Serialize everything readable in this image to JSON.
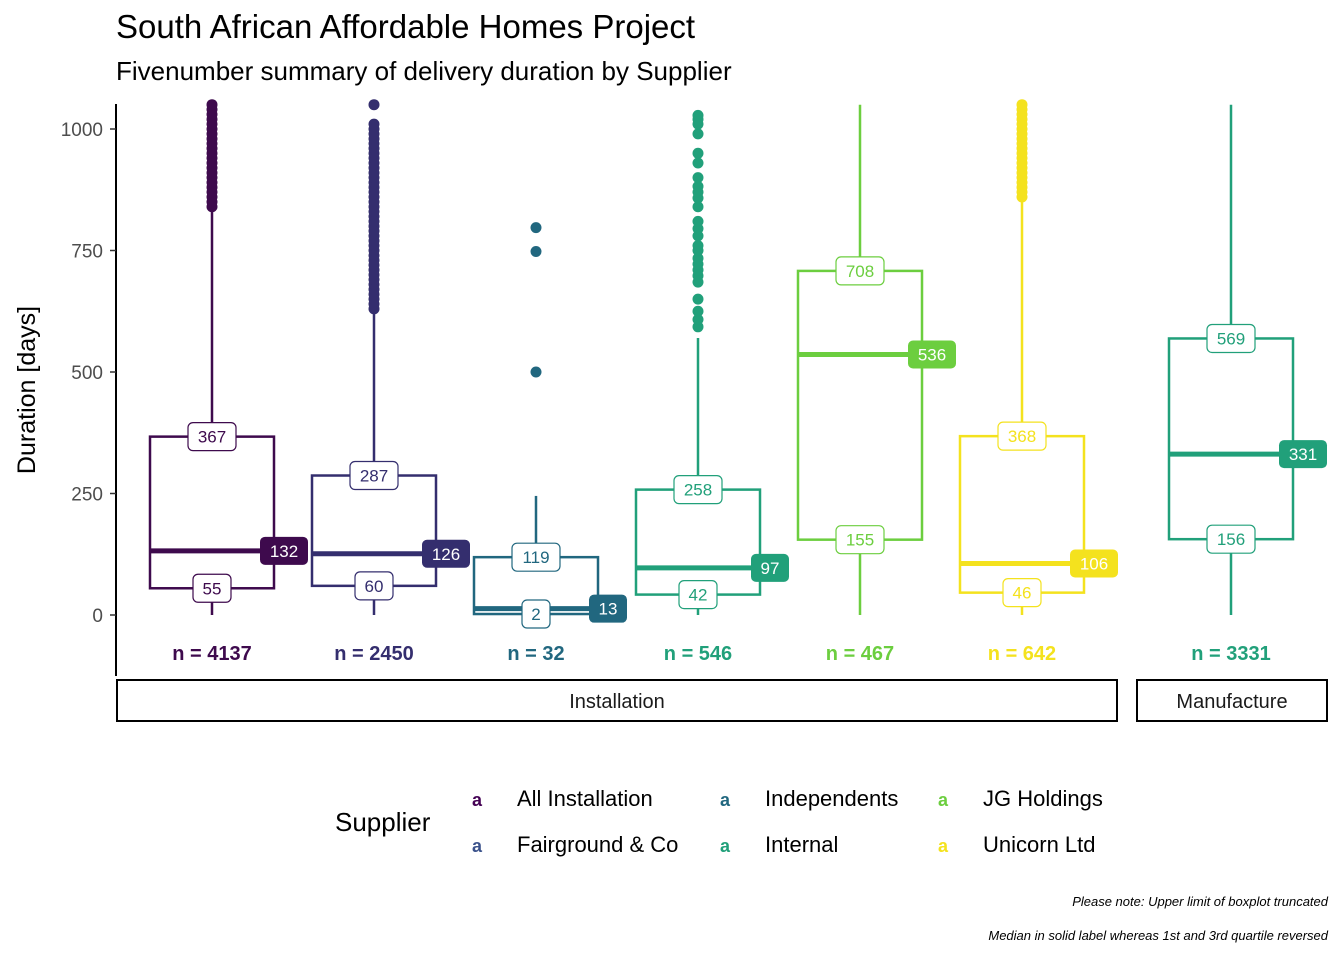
{
  "title": "South African Affordable Homes Project",
  "subtitle": "Fivenumber summary of delivery duration by Supplier",
  "captions": [
    "Please note: Upper limit of boxplot truncated",
    "Median in solid label whereas 1st and 3rd quartile reversed"
  ],
  "chart_data": {
    "type": "boxplot",
    "ylabel": "Duration [days]",
    "xlabel": "",
    "ylim": [
      -130,
      1050
    ],
    "yticks": [
      0,
      250,
      500,
      750,
      1000
    ],
    "legend": {
      "title": "Supplier",
      "placement": "bottom",
      "key_glyph": "a",
      "entries": [
        {
          "name": "All Installation",
          "color": "#440154"
        },
        {
          "name": "Fairground & Co",
          "color": "#3B528B"
        },
        {
          "name": "Independents",
          "color": "#21677F"
        },
        {
          "name": "Internal",
          "color": "#21A07A"
        },
        {
          "name": "JG Holdings",
          "color": "#6CCE3F"
        },
        {
          "name": "Unicorn Ltd",
          "color": "#F4E21E"
        }
      ]
    },
    "facets": [
      {
        "name": "Installation",
        "groups": [
          {
            "supplier": "All Installation",
            "color": "#3E0A4D",
            "min": 0,
            "q1": 55,
            "median": 132,
            "q3": 367,
            "max": 835,
            "n_label": "n = 4137",
            "outliers": [
              840,
              850,
              860,
              870,
              880,
              890,
              900,
              910,
              920,
              930,
              940,
              950,
              960,
              970,
              980,
              990,
              1000,
              1010,
              1020,
              1030,
              1040,
              1050
            ]
          },
          {
            "supplier": "Fairground & Co",
            "color": "#342E6E",
            "min": 0,
            "q1": 60,
            "median": 126,
            "q3": 287,
            "max": 625,
            "n_label": "n = 2450",
            "outliers": [
              630,
              640,
              650,
              660,
              670,
              680,
              690,
              700,
              710,
              720,
              730,
              740,
              750,
              760,
              770,
              780,
              790,
              800,
              810,
              820,
              830,
              840,
              850,
              860,
              870,
              880,
              890,
              900,
              910,
              920,
              930,
              940,
              950,
              960,
              970,
              980,
              990,
              1000,
              1010,
              1050
            ]
          },
          {
            "supplier": "Independents",
            "color": "#21677F",
            "min": 0,
            "q1": 2,
            "median": 13,
            "q3": 119,
            "max": 245,
            "n_label": "n = 32",
            "outliers": [
              500,
              748,
              797
            ]
          },
          {
            "supplier": "Internal",
            "color": "#21A07A",
            "min": 0,
            "q1": 42,
            "median": 97,
            "q3": 258,
            "max": 570,
            "n_label": "n = 546",
            "outliers": [
              593,
              608,
              625,
              650,
              685,
              698,
              710,
              722,
              734,
              750,
              760,
              780,
              795,
              810,
              840,
              858,
              870,
              882,
              900,
              930,
              950,
              990,
              1010,
              1020,
              1028
            ]
          },
          {
            "supplier": "JG Holdings",
            "color": "#6CCE3F",
            "min": 0,
            "q1": 155,
            "median": 536,
            "q3": 708,
            "max": 1050,
            "n_label": "n = 467",
            "outliers": []
          },
          {
            "supplier": "Unicorn Ltd",
            "color": "#F4E21E",
            "min": 0,
            "q1": 46,
            "median": 106,
            "q3": 368,
            "max": 850,
            "n_label": "n = 642",
            "outliers": [
              860,
              870,
              880,
              890,
              900,
              910,
              920,
              930,
              940,
              950,
              960,
              970,
              980,
              990,
              1000,
              1010,
              1020,
              1030,
              1040,
              1050
            ]
          }
        ]
      },
      {
        "name": "Manufacture",
        "groups": [
          {
            "supplier": "Internal",
            "color": "#21A07A",
            "min": 0,
            "q1": 156,
            "median": 331,
            "q3": 569,
            "max": 1050,
            "n_label": "n = 3331",
            "outliers": []
          }
        ]
      }
    ]
  }
}
